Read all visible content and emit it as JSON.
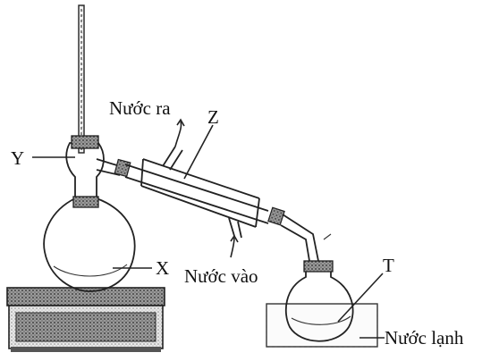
{
  "labels": {
    "x": "X",
    "y": "Y",
    "z": "Z",
    "t": "T",
    "water_out": "Nước ra",
    "water_in": "Nước vào",
    "cold_water": "Nước lạnh"
  }
}
